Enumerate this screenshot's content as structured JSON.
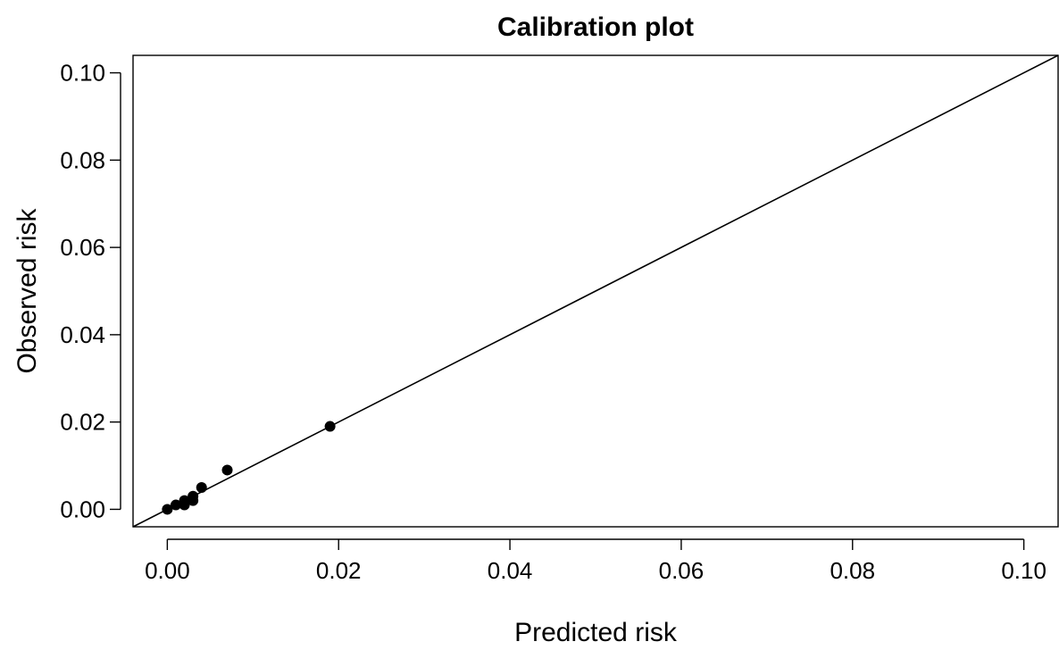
{
  "chart_data": {
    "type": "scatter",
    "title": "Calibration plot",
    "xlabel": "Predicted risk",
    "ylabel": "Observed risk",
    "xlim": [
      -0.004,
      0.104
    ],
    "ylim": [
      -0.004,
      0.104
    ],
    "x_ticks": [
      0.0,
      0.02,
      0.04,
      0.06,
      0.08,
      0.1
    ],
    "x_tick_labels": [
      "0.00",
      "0.02",
      "0.04",
      "0.06",
      "0.08",
      "0.10"
    ],
    "y_ticks": [
      0.0,
      0.02,
      0.04,
      0.06,
      0.08,
      0.1
    ],
    "y_tick_labels": [
      "0.00",
      "0.02",
      "0.04",
      "0.06",
      "0.08",
      "0.10"
    ],
    "grid": false,
    "reference_line": {
      "type": "identity",
      "slope": 1,
      "intercept": 0
    },
    "points": [
      {
        "x": 0.0,
        "y": 0.0
      },
      {
        "x": 0.001,
        "y": 0.001
      },
      {
        "x": 0.002,
        "y": 0.001
      },
      {
        "x": 0.002,
        "y": 0.002
      },
      {
        "x": 0.003,
        "y": 0.002
      },
      {
        "x": 0.003,
        "y": 0.003
      },
      {
        "x": 0.004,
        "y": 0.005
      },
      {
        "x": 0.007,
        "y": 0.009
      },
      {
        "x": 0.019,
        "y": 0.019
      }
    ],
    "marker_color": "#000000"
  }
}
